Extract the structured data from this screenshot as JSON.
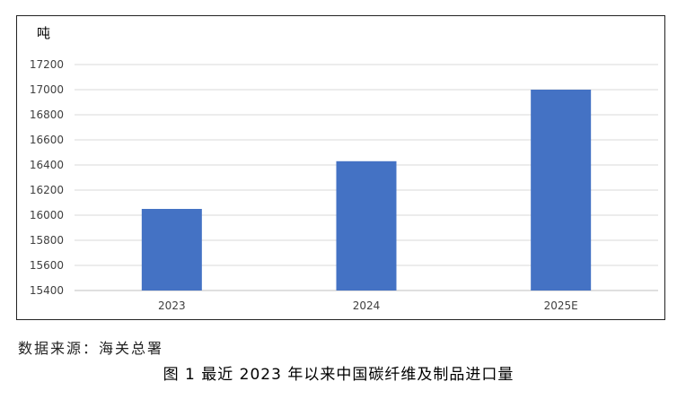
{
  "chart_data": {
    "type": "bar",
    "unit_label": "吨",
    "categories": [
      "2023",
      "2024",
      "2025E"
    ],
    "values": [
      16050,
      16430,
      17000
    ],
    "ylim": [
      15400,
      17200
    ],
    "yticks": [
      15400,
      15600,
      15800,
      16000,
      16200,
      16400,
      16600,
      16800,
      17000,
      17200
    ],
    "grid": true,
    "bar_color": "#4472C4"
  },
  "source_text": "数据来源：海关总署",
  "caption": "图 1  最近 2023 年以来中国碳纤维及制品进口量"
}
